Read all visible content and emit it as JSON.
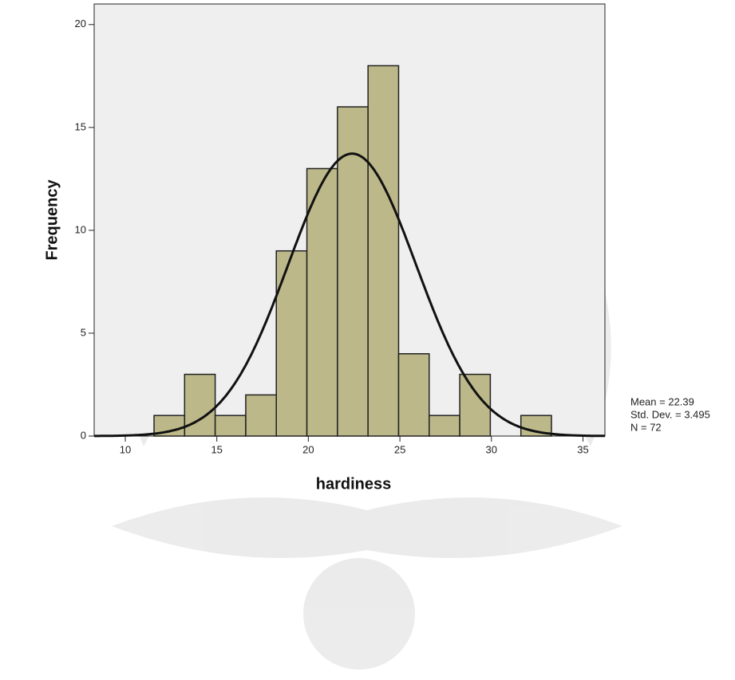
{
  "chart_data": {
    "type": "histogram",
    "x_label": "hardiness",
    "y_label": "Frequency",
    "bins": [
      11.57,
      13.24,
      14.91,
      16.58,
      18.25,
      19.92,
      21.59,
      23.26,
      24.93,
      26.6,
      28.27,
      29.94,
      31.61,
      33.28
    ],
    "values": [
      1,
      3,
      1,
      2,
      9,
      13,
      16,
      18,
      4,
      1,
      3,
      0,
      1
    ],
    "color": "#b3ae78",
    "edge_color": "#222222",
    "curve_color": "#111111",
    "plot_background": "#efefef",
    "xlim": [
      8.3,
      36.2
    ],
    "ylim": [
      0,
      21
    ],
    "xticks": [
      10,
      15,
      20,
      25,
      30,
      35
    ],
    "yticks": [
      0,
      5,
      10,
      15,
      20
    ],
    "stats": [
      {
        "value": 22.39,
        "label": "Mean = 22.39"
      },
      {
        "value": 3.495,
        "label": "Std. Dev. = 3.495"
      },
      {
        "value": 72,
        "label": "N = 72"
      }
    ]
  }
}
